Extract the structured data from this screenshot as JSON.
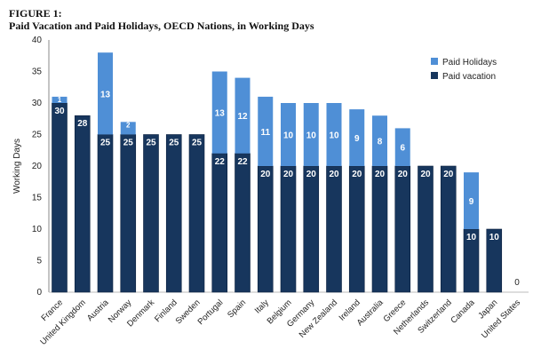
{
  "chart_data": {
    "type": "bar",
    "stacked": true,
    "figure_label": "FIGURE 1:",
    "title": "Paid Vacation and Paid Holidays, OECD Nations, in Working Days",
    "xlabel": "",
    "ylabel": "Working Days",
    "ylim": [
      0,
      40
    ],
    "yticks": [
      0,
      5,
      10,
      15,
      20,
      25,
      30,
      35,
      40
    ],
    "legend_position": "top-right",
    "categories": [
      "France",
      "United Kingdom",
      "Austria",
      "Norway",
      "Denmark",
      "Finland",
      "Sweden",
      "Portugal",
      "Spain",
      "Italy",
      "Belgium",
      "Germany",
      "New Zealand",
      "Ireland",
      "Australia",
      "Greece",
      "Netherlands",
      "Switzerland",
      "Canada",
      "Japan",
      "United States"
    ],
    "series": [
      {
        "name": "Paid vacation",
        "color": "#17365d",
        "values": [
          30,
          28,
          25,
          25,
          25,
          25,
          25,
          22,
          22,
          20,
          20,
          20,
          20,
          20,
          20,
          20,
          20,
          20,
          10,
          10,
          0
        ]
      },
      {
        "name": "Paid Holidays",
        "color": "#4f8fd6",
        "values": [
          1,
          0,
          13,
          2,
          0,
          0,
          0,
          13,
          12,
          11,
          10,
          10,
          10,
          9,
          8,
          6,
          0,
          0,
          9,
          0,
          0
        ]
      }
    ],
    "legend": [
      "Paid Holidays",
      "Paid vacation"
    ]
  }
}
